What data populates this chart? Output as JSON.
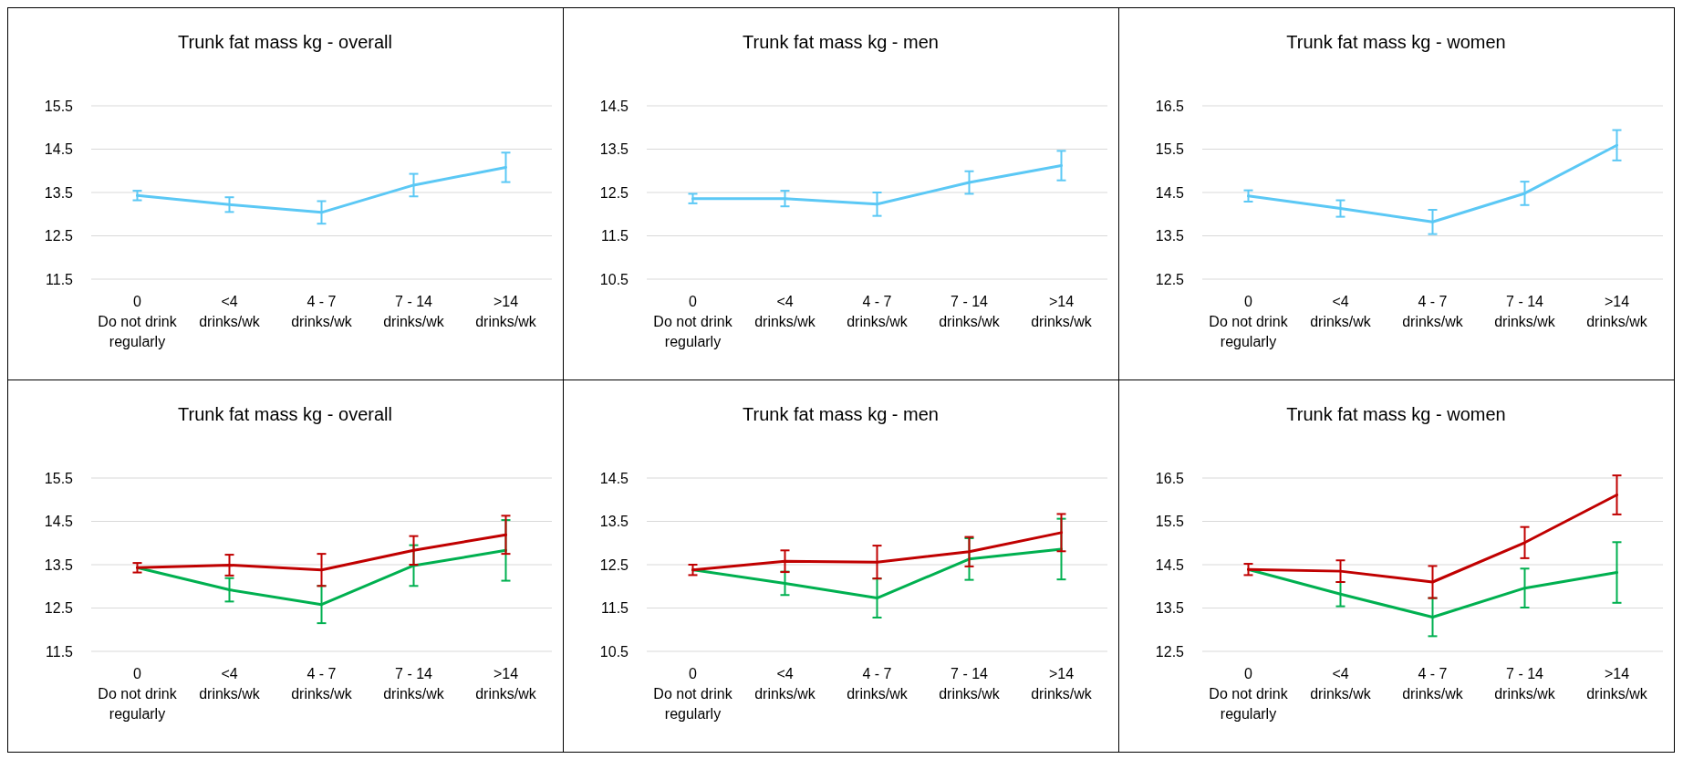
{
  "chart_data": [
    {
      "type": "line",
      "title": "Trunk fat mass kg - overall",
      "categories": [
        "0\nDo not drink regularly",
        "<4\ndrinks/wk",
        "4 - 7\ndrinks/wk",
        "7 - 14\ndrinks/wk",
        ">14\ndrinks/wk"
      ],
      "ylim": [
        11.5,
        15.5
      ],
      "yticks": [
        11.5,
        12.5,
        13.5,
        14.5,
        15.5
      ],
      "grid": "y",
      "marker": "none",
      "series": [
        {
          "color": "#5bc8f5",
          "values": [
            13.43,
            13.22,
            13.04,
            13.67,
            14.08
          ],
          "errors": [
            0.11,
            0.17,
            0.26,
            0.26,
            0.34
          ]
        }
      ]
    },
    {
      "type": "line",
      "title": "Trunk fat mass kg - men",
      "categories": [
        "0\nDo not drink regularly",
        "<4\ndrinks/wk",
        "4 - 7\ndrinks/wk",
        "7 - 14\ndrinks/wk",
        ">14\ndrinks/wk"
      ],
      "ylim": [
        10.5,
        14.5
      ],
      "yticks": [
        10.5,
        11.5,
        12.5,
        13.5,
        14.5
      ],
      "grid": "y",
      "marker": "none",
      "series": [
        {
          "color": "#5bc8f5",
          "values": [
            12.36,
            12.36,
            12.23,
            12.73,
            13.12
          ],
          "errors": [
            0.11,
            0.18,
            0.27,
            0.26,
            0.34
          ]
        }
      ]
    },
    {
      "type": "line",
      "title": "Trunk fat mass kg - women",
      "categories": [
        "0\nDo not drink regularly",
        "<4\ndrinks/wk",
        "4 - 7\ndrinks/wk",
        "7 - 14\ndrinks/wk",
        ">14\ndrinks/wk"
      ],
      "ylim": [
        12.5,
        16.5
      ],
      "yticks": [
        12.5,
        13.5,
        14.5,
        15.5,
        16.5
      ],
      "grid": "y",
      "marker": "none",
      "series": [
        {
          "color": "#5bc8f5",
          "values": [
            14.42,
            14.13,
            13.82,
            14.48,
            15.59
          ],
          "errors": [
            0.13,
            0.19,
            0.28,
            0.27,
            0.35
          ]
        }
      ]
    },
    {
      "type": "line",
      "title": "Trunk fat mass kg - overall",
      "categories": [
        "0\nDo not drink regularly",
        "<4\ndrinks/wk",
        "4 - 7\ndrinks/wk",
        "7 - 14\ndrinks/wk",
        ">14\ndrinks/wk"
      ],
      "ylim": [
        11.5,
        15.5
      ],
      "yticks": [
        11.5,
        12.5,
        13.5,
        14.5,
        15.5
      ],
      "grid": "y",
      "marker": "none",
      "series": [
        {
          "color": "#00b050",
          "values": [
            13.43,
            12.92,
            12.58,
            13.48,
            13.83
          ],
          "errors": [
            null,
            0.27,
            0.43,
            0.47,
            0.7
          ]
        },
        {
          "color": "#c00000",
          "values": [
            13.43,
            13.49,
            13.38,
            13.83,
            14.19
          ],
          "errors": [
            0.11,
            0.24,
            0.37,
            0.33,
            0.44
          ]
        }
      ]
    },
    {
      "type": "line",
      "title": "Trunk fat mass kg - men",
      "categories": [
        "0\nDo not drink regularly",
        "<4\ndrinks/wk",
        "4 - 7\ndrinks/wk",
        "7 - 14\ndrinks/wk",
        ">14\ndrinks/wk"
      ],
      "ylim": [
        10.5,
        14.5
      ],
      "yticks": [
        10.5,
        11.5,
        12.5,
        13.5,
        14.5
      ],
      "grid": "y",
      "marker": "none",
      "series": [
        {
          "color": "#00b050",
          "values": [
            12.38,
            12.07,
            11.73,
            12.63,
            12.86
          ],
          "errors": [
            null,
            0.27,
            0.45,
            0.48,
            0.7
          ]
        },
        {
          "color": "#c00000",
          "values": [
            12.38,
            12.58,
            12.56,
            12.8,
            13.24
          ],
          "errors": [
            0.12,
            0.25,
            0.38,
            0.34,
            0.43
          ]
        }
      ]
    },
    {
      "type": "line",
      "title": "Trunk fat mass kg - women",
      "categories": [
        "0\nDo not drink regularly",
        "<4\ndrinks/wk",
        "4 - 7\ndrinks/wk",
        "7 - 14\ndrinks/wk",
        ">14\ndrinks/wk"
      ],
      "ylim": [
        12.5,
        16.5
      ],
      "yticks": [
        12.5,
        13.5,
        14.5,
        15.5,
        16.5
      ],
      "grid": "y",
      "marker": "none",
      "series": [
        {
          "color": "#00b050",
          "values": [
            14.39,
            13.82,
            13.29,
            13.96,
            14.32
          ],
          "errors": [
            null,
            0.28,
            0.44,
            0.45,
            0.7
          ]
        },
        {
          "color": "#c00000",
          "values": [
            14.39,
            14.35,
            14.1,
            15.01,
            16.11
          ],
          "errors": [
            0.13,
            0.25,
            0.37,
            0.36,
            0.45
          ]
        }
      ]
    }
  ]
}
